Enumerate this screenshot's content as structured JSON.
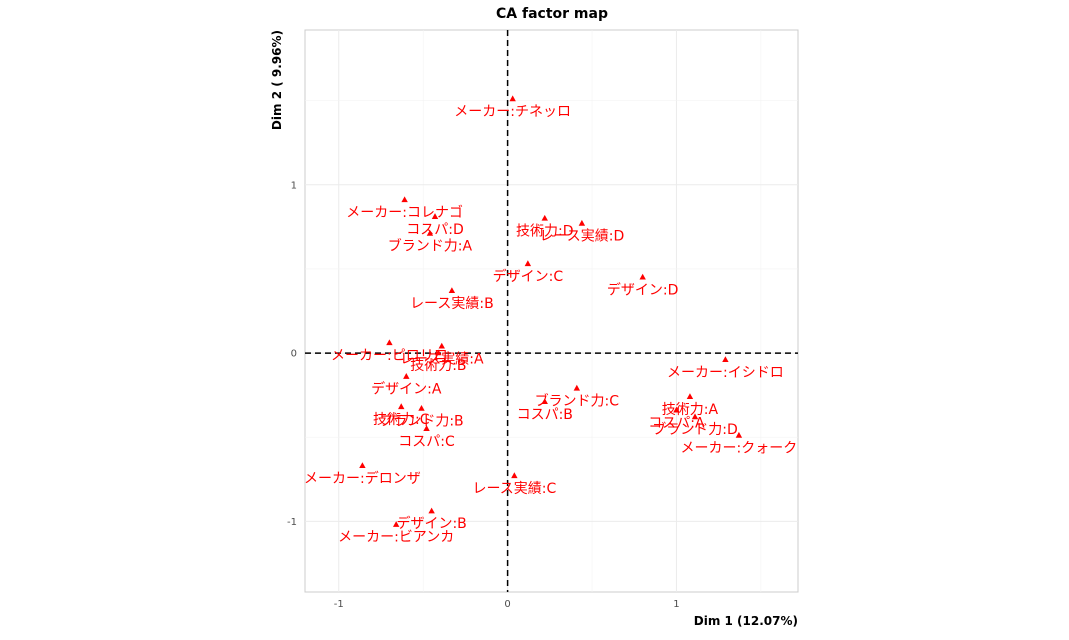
{
  "chart_data": {
    "type": "scatter",
    "title": "CA factor map",
    "xlabel": "Dim 1 (12.07%)",
    "ylabel": "Dim 2 ( 9.96%)",
    "xlim": [
      -1.2,
      1.72
    ],
    "ylim": [
      -1.42,
      1.92
    ],
    "x_ticks": [
      -1,
      0,
      1
    ],
    "y_ticks": [
      -1,
      0,
      1
    ],
    "x_tick_labels": [
      "-1",
      "0",
      "1"
    ],
    "y_tick_labels": [
      "-1",
      "0",
      "1"
    ],
    "grid": true,
    "reference_lines": {
      "x": 0,
      "y": 0
    },
    "point_color": "#ff0000",
    "label_color": "#ff0000",
    "points": [
      {
        "label": "メーカー:チネッロ",
        "x": 0.03,
        "y": 1.51
      },
      {
        "label": "メーカー:コレナゴ",
        "x": -0.61,
        "y": 0.91
      },
      {
        "label": "コスパ:D",
        "x": -0.43,
        "y": 0.81
      },
      {
        "label": "技術力:D",
        "x": 0.22,
        "y": 0.8
      },
      {
        "label": "レース実績:D",
        "x": 0.44,
        "y": 0.77
      },
      {
        "label": "ブランド力:A",
        "x": -0.46,
        "y": 0.71
      },
      {
        "label": "デザイン:C",
        "x": 0.12,
        "y": 0.53
      },
      {
        "label": "デザイン:D",
        "x": 0.8,
        "y": 0.45
      },
      {
        "label": "レース実績:B",
        "x": -0.33,
        "y": 0.37
      },
      {
        "label": "メーカー:ピロリロ",
        "x": -0.7,
        "y": 0.06
      },
      {
        "label": "レース実績:A",
        "x": -0.39,
        "y": 0.04
      },
      {
        "label": "技術力:B",
        "x": -0.41,
        "y": 0.0
      },
      {
        "label": "メーカー:イシドロ",
        "x": 1.29,
        "y": -0.04
      },
      {
        "label": "デザイン:A",
        "x": -0.6,
        "y": -0.14
      },
      {
        "label": "ブランド力:C",
        "x": 0.41,
        "y": -0.21
      },
      {
        "label": "技術力:A",
        "x": 1.08,
        "y": -0.26
      },
      {
        "label": "ブランド力:B",
        "x": -0.51,
        "y": -0.33
      },
      {
        "label": "技術力:C",
        "x": -0.63,
        "y": -0.32
      },
      {
        "label": "コスパ:B",
        "x": 0.22,
        "y": -0.29
      },
      {
        "label": "コスパ:A",
        "x": 1.0,
        "y": -0.34
      },
      {
        "label": "ブランド力:D",
        "x": 1.11,
        "y": -0.38
      },
      {
        "label": "コスパ:C",
        "x": -0.48,
        "y": -0.45
      },
      {
        "label": "メーカー:クォーク",
        "x": 1.37,
        "y": -0.49
      },
      {
        "label": "メーカー:デロンザ",
        "x": -0.86,
        "y": -0.67
      },
      {
        "label": "レース実績:C",
        "x": 0.04,
        "y": -0.73
      },
      {
        "label": "デザイン:B",
        "x": -0.45,
        "y": -0.94
      },
      {
        "label": "メーカー:ビアンカ",
        "x": -0.66,
        "y": -1.02
      }
    ]
  }
}
